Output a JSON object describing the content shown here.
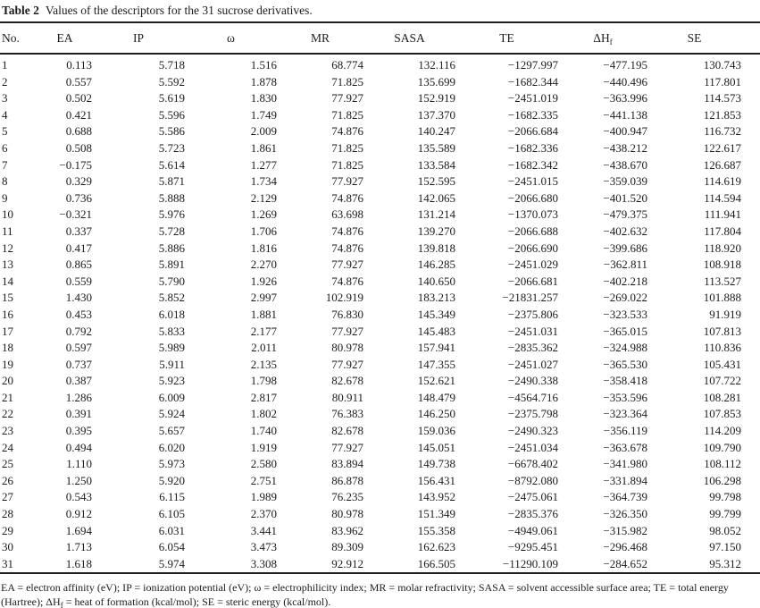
{
  "title": {
    "label": "Table 2",
    "text": "Values of the descriptors for the 31 sucrose derivatives."
  },
  "table": {
    "columns": [
      {
        "key": "no",
        "label": "No."
      },
      {
        "key": "ea",
        "label": "EA"
      },
      {
        "key": "ip",
        "label": "IP"
      },
      {
        "key": "omega",
        "label": "ω"
      },
      {
        "key": "mr",
        "label": "MR"
      },
      {
        "key": "sasa",
        "label": "SASA"
      },
      {
        "key": "te",
        "label": "TE"
      },
      {
        "key": "dhf",
        "label": "ΔH",
        "sub": "f"
      },
      {
        "key": "se",
        "label": "SE"
      }
    ],
    "rows": [
      [
        "1",
        "0.113",
        "5.718",
        "1.516",
        "68.774",
        "132.116",
        "−1297.997",
        "−477.195",
        "130.743"
      ],
      [
        "2",
        "0.557",
        "5.592",
        "1.878",
        "71.825",
        "135.699",
        "−1682.344",
        "−440.496",
        "117.801"
      ],
      [
        "3",
        "0.502",
        "5.619",
        "1.830",
        "77.927",
        "152.919",
        "−2451.019",
        "−363.996",
        "114.573"
      ],
      [
        "4",
        "0.421",
        "5.596",
        "1.749",
        "71.825",
        "137.370",
        "−1682.335",
        "−441.138",
        "121.853"
      ],
      [
        "5",
        "0.688",
        "5.586",
        "2.009",
        "74.876",
        "140.247",
        "−2066.684",
        "−400.947",
        "116.732"
      ],
      [
        "6",
        "0.508",
        "5.723",
        "1.861",
        "71.825",
        "135.589",
        "−1682.336",
        "−438.212",
        "122.617"
      ],
      [
        "7",
        "−0.175",
        "5.614",
        "1.277",
        "71.825",
        "133.584",
        "−1682.342",
        "−438.670",
        "126.687"
      ],
      [
        "8",
        "0.329",
        "5.871",
        "1.734",
        "77.927",
        "152.595",
        "−2451.015",
        "−359.039",
        "114.619"
      ],
      [
        "9",
        "0.736",
        "5.888",
        "2.129",
        "74.876",
        "142.065",
        "−2066.680",
        "−401.520",
        "114.594"
      ],
      [
        "10",
        "−0.321",
        "5.976",
        "1.269",
        "63.698",
        "131.214",
        "−1370.073",
        "−479.375",
        "111.941"
      ],
      [
        "11",
        "0.337",
        "5.728",
        "1.706",
        "74.876",
        "139.270",
        "−2066.688",
        "−402.632",
        "117.804"
      ],
      [
        "12",
        "0.417",
        "5.886",
        "1.816",
        "74.876",
        "139.818",
        "−2066.690",
        "−399.686",
        "118.920"
      ],
      [
        "13",
        "0.865",
        "5.891",
        "2.270",
        "77.927",
        "146.285",
        "−2451.029",
        "−362.811",
        "108.918"
      ],
      [
        "14",
        "0.559",
        "5.790",
        "1.926",
        "74.876",
        "140.650",
        "−2066.681",
        "−402.218",
        "113.527"
      ],
      [
        "15",
        "1.430",
        "5.852",
        "2.997",
        "102.919",
        "183.213",
        "−21831.257",
        "−269.022",
        "101.888"
      ],
      [
        "16",
        "0.453",
        "6.018",
        "1.881",
        "76.830",
        "145.349",
        "−2375.806",
        "−323.533",
        "91.919"
      ],
      [
        "17",
        "0.792",
        "5.833",
        "2.177",
        "77.927",
        "145.483",
        "−2451.031",
        "−365.015",
        "107.813"
      ],
      [
        "18",
        "0.597",
        "5.989",
        "2.011",
        "80.978",
        "157.941",
        "−2835.362",
        "−324.988",
        "110.836"
      ],
      [
        "19",
        "0.737",
        "5.911",
        "2.135",
        "77.927",
        "147.355",
        "−2451.027",
        "−365.530",
        "105.431"
      ],
      [
        "20",
        "0.387",
        "5.923",
        "1.798",
        "82.678",
        "152.621",
        "−2490.338",
        "−358.418",
        "107.722"
      ],
      [
        "21",
        "1.286",
        "6.009",
        "2.817",
        "80.911",
        "148.479",
        "−4564.716",
        "−353.596",
        "108.281"
      ],
      [
        "22",
        "0.391",
        "5.924",
        "1.802",
        "76.383",
        "146.250",
        "−2375.798",
        "−323.364",
        "107.853"
      ],
      [
        "23",
        "0.395",
        "5.657",
        "1.740",
        "82.678",
        "159.036",
        "−2490.323",
        "−356.119",
        "114.209"
      ],
      [
        "24",
        "0.494",
        "6.020",
        "1.919",
        "77.927",
        "145.051",
        "−2451.034",
        "−363.678",
        "109.790"
      ],
      [
        "25",
        "1.110",
        "5.973",
        "2.580",
        "83.894",
        "149.738",
        "−6678.402",
        "−341.980",
        "108.112"
      ],
      [
        "26",
        "1.250",
        "5.920",
        "2.751",
        "86.878",
        "156.431",
        "−8792.080",
        "−331.894",
        "106.298"
      ],
      [
        "27",
        "0.543",
        "6.115",
        "1.989",
        "76.235",
        "143.952",
        "−2475.061",
        "−364.739",
        "99.798"
      ],
      [
        "28",
        "0.912",
        "6.105",
        "2.370",
        "80.978",
        "151.349",
        "−2835.376",
        "−326.350",
        "99.799"
      ],
      [
        "29",
        "1.694",
        "6.031",
        "3.441",
        "83.962",
        "155.358",
        "−4949.061",
        "−315.982",
        "98.052"
      ],
      [
        "30",
        "1.713",
        "6.054",
        "3.473",
        "89.309",
        "162.623",
        "−9295.451",
        "−296.468",
        "97.150"
      ],
      [
        "31",
        "1.618",
        "5.974",
        "3.308",
        "92.912",
        "166.505",
        "−11290.109",
        "−284.652",
        "95.312"
      ]
    ]
  },
  "footnote": {
    "line1": "EA = electron affinity (eV); IP = ionization potential (eV); ω = electrophilicity index; MR = molar refractivity; SASA = solvent accessible surface area; TE = total energy",
    "line2_pre": "(Hartree); ΔH",
    "line2_sub": "f",
    "line2_post": " = heat of formation (kcal/mol); SE = steric energy (kcal/mol)."
  }
}
